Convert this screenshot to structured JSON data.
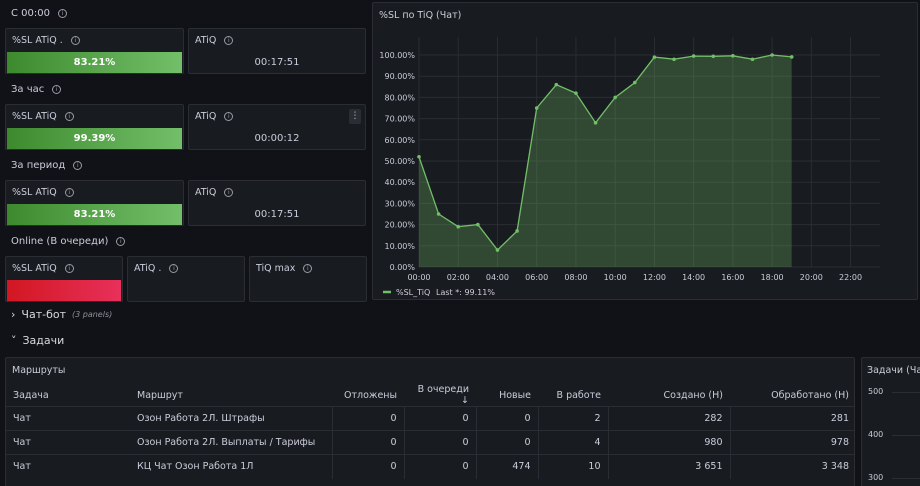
{
  "sections": {
    "since_midnight": "С 00:00",
    "per_hour": "За час",
    "per_period": "За период",
    "online": "Online (В очереди)",
    "chatbot_row": "Чат-бот",
    "chatbot_panels": "(3 panels)",
    "tasks_row": "Задачи"
  },
  "stats": {
    "sl_label_a": "%SL ATiQ .",
    "sl_label": "%SL ATiQ",
    "atiq_label": "ATiQ",
    "atiq_label_dot": "ATiQ .",
    "tiq_max_label": "TiQ max",
    "midnight_sl": "83.21%",
    "midnight_sl_fraction": 0.8321,
    "midnight_atiq": "00:17:51",
    "hour_sl": "99.39%",
    "hour_sl_fraction": 0.9939,
    "hour_atiq": "00:00:12",
    "period_sl": "83.21%",
    "period_sl_fraction": 0.8321,
    "period_atiq": "00:17:51",
    "menu_glyph": "⋮",
    "green": "#73bf69",
    "red": "#e02f44"
  },
  "chart_panel": {
    "title": "%SL по TiQ (Чат)",
    "legend_name": "%SL_TiQ",
    "legend_last": "Last *: 99.11%"
  },
  "chart_data": {
    "type": "area",
    "title": "%SL по TiQ (Чат)",
    "y_ticks": [
      "0.00%",
      "10.00%",
      "20.00%",
      "30.00%",
      "40.00%",
      "50.00%",
      "60.00%",
      "70.00%",
      "80.00%",
      "90.00%",
      "100.00%"
    ],
    "x_ticks": [
      "00:00",
      "02:00",
      "04:00",
      "06:00",
      "08:00",
      "10:00",
      "12:00",
      "14:00",
      "16:00",
      "18:00",
      "20:00",
      "22:00"
    ],
    "xlim": [
      0,
      23.5
    ],
    "ylim": [
      0,
      100
    ],
    "series": [
      {
        "name": "%SL_TiQ",
        "color": "#73bf69",
        "x": [
          0,
          1,
          2,
          3,
          4,
          5,
          6,
          7,
          8,
          9,
          10,
          11,
          12,
          13,
          14,
          15,
          16,
          17,
          18,
          19
        ],
        "values": [
          52,
          25,
          19,
          20,
          8,
          17,
          75,
          86,
          82,
          68,
          80,
          87,
          99,
          98,
          99.5,
          99.4,
          99.6,
          98,
          100,
          99.1
        ]
      }
    ],
    "grid": true,
    "legend": "bottom-left"
  },
  "routes_panel": {
    "title": "Маршруты",
    "sort_glyph": "↓",
    "columns": [
      "Задача",
      "Маршрут",
      "Отложены",
      "В очереди",
      "Новые",
      "В работе",
      "Создано (Н)",
      "Обработано (Н)"
    ],
    "rows": [
      [
        "Чат",
        "Озон Работа 2Л. Штрафы",
        "0",
        "0",
        "0",
        "2",
        "282",
        "281"
      ],
      [
        "Чат",
        "Озон Работа 2Л. Выплаты / Тарифы",
        "0",
        "0",
        "0",
        "4",
        "980",
        "978"
      ],
      [
        "Чат",
        "КЦ Чат Озон Работа 1Л",
        "0",
        "0",
        "474",
        "10",
        "3 651",
        "3 348"
      ]
    ]
  },
  "tasks_side_panel": {
    "title": "Задачи (Ча",
    "y_ticks": [
      "500",
      "400",
      "300"
    ]
  }
}
